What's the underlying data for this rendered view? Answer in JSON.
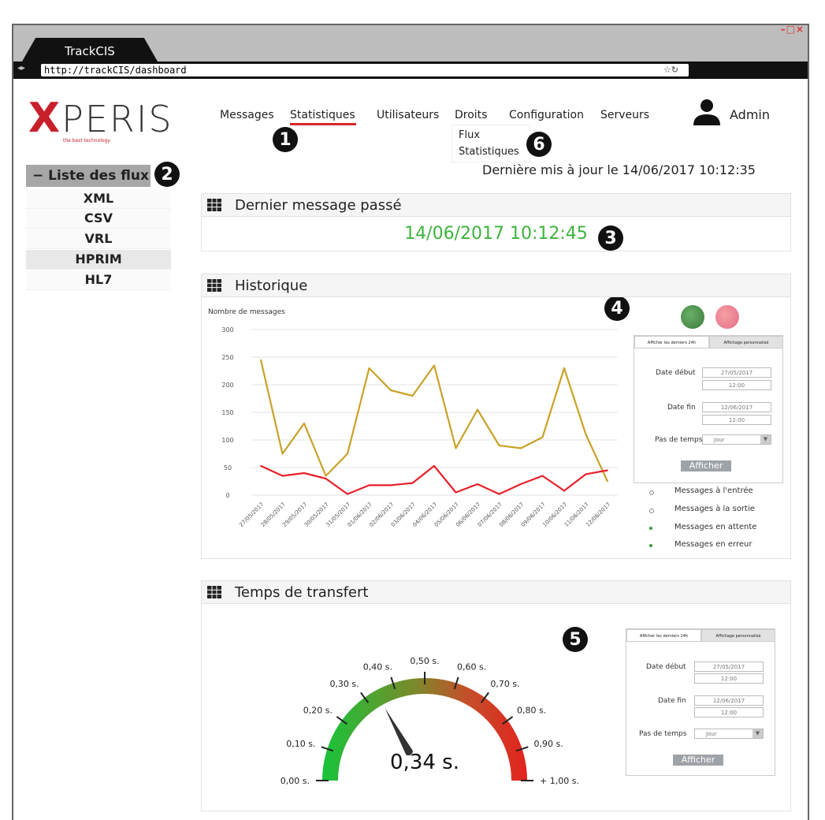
{
  "browser": {
    "tab_title": "TrackCIS",
    "window_buttons": "–□×",
    "nav_icons": "◂▸",
    "url": "http://trackCIS/dashboard",
    "url_icons": "☆↻"
  },
  "logo": {
    "x": "X",
    "rest": "PERIS",
    "tagline": "the best technology"
  },
  "nav": {
    "items": [
      "Messages",
      "Statistiques",
      "Utilisateurs",
      "Droits",
      "Configuration",
      "Serveurs"
    ],
    "active": "Statistiques",
    "dropdown": [
      "Flux",
      "Statistiques"
    ],
    "user": "Admin"
  },
  "updated": "Dernière mis à jour le 14/06/2017 10:12:35",
  "badges": [
    "1",
    "2",
    "3",
    "4",
    "5",
    "6"
  ],
  "sidebar": {
    "title": "− Liste des flux",
    "items": [
      "XML",
      "CSV",
      "VRL",
      "HPRIM",
      "HL7"
    ],
    "selected": "HPRIM"
  },
  "panels": {
    "last_message": {
      "title": "Dernier message passé",
      "value": "14/06/2017 10:12:45"
    },
    "historique": {
      "title": "Historique"
    },
    "transfert": {
      "title": "Temps de transfert"
    }
  },
  "colors": {
    "accent_red": "#d9262b",
    "green": "#3cb43c",
    "line_gold": "#c9a227",
    "line_red": "#e8202a"
  },
  "chart_data": [
    {
      "type": "line",
      "ylabel": "Nombre de messages",
      "ylim": [
        0,
        300
      ],
      "y_ticks": [
        0,
        50,
        100,
        150,
        200,
        250,
        300
      ],
      "categories": [
        "27/05/2017",
        "28/05/2017",
        "29/05/2017",
        "30/05/2017",
        "31/05/2017",
        "01/06/2017",
        "02/06/2017",
        "03/06/2017",
        "04/06/2017",
        "05/06/2017",
        "06/06/2017",
        "07/06/2017",
        "08/06/2017",
        "09/06/2017",
        "10/06/2017",
        "11/06/2017",
        "12/06/2017"
      ],
      "series": [
        {
          "name": "",
          "color": "#c9a227",
          "values": [
            245,
            75,
            130,
            35,
            75,
            230,
            190,
            180,
            235,
            85,
            155,
            90,
            85,
            105,
            230,
            110,
            25
          ]
        },
        {
          "name": "",
          "color": "#e8202a",
          "values": [
            53,
            35,
            40,
            30,
            2,
            18,
            18,
            22,
            53,
            5,
            20,
            2,
            20,
            35,
            8,
            38,
            45
          ]
        }
      ],
      "legend": [
        "Messages à l'entrée",
        "Messages à la sortie",
        "Messages en attente",
        "Messages en erreur"
      ],
      "legend_colors": [
        "#888888",
        "#888888",
        "#3a9a3a",
        "#3a9a3a"
      ],
      "grid": true,
      "legend_position": "right"
    },
    {
      "type": "gauge",
      "value": 0.34,
      "value_label": "0,34 s.",
      "range": [
        0,
        1
      ],
      "tick_labels": [
        "0,00 s.",
        "0,10 s.",
        "0,20 s.",
        "0,30 s.",
        "0,40 s.",
        "0,50 s.",
        "0,60 s.",
        "0,70 s.",
        "0,80 s.",
        "0,90 s.",
        "+ 1,00 s."
      ]
    }
  ],
  "hist_form": {
    "tabs": [
      "Afficher les derniers 24h",
      "Affichage personnalisé"
    ],
    "date_debut_label": "Date début",
    "date_debut": "27/05/2017",
    "heure_debut": "12:00",
    "date_fin_label": "Date fin",
    "date_fin": "12/06/2017",
    "heure_fin": "12:00",
    "pas_label": "Pas de temps",
    "pas_value": "Jour",
    "button": "Afficher"
  },
  "trans_form": {
    "tabs": [
      "Afficher les derniers 24h",
      "Affichage personnalisé"
    ],
    "date_debut_label": "Date début",
    "date_debut": "27/05/2017",
    "heure_debut": "12:00",
    "date_fin_label": "Date fin",
    "date_fin": "12/06/2017",
    "heure_fin": "12:00",
    "pas_label": "Pas de temps",
    "pas_value": "Jour",
    "button": "Afficher"
  }
}
